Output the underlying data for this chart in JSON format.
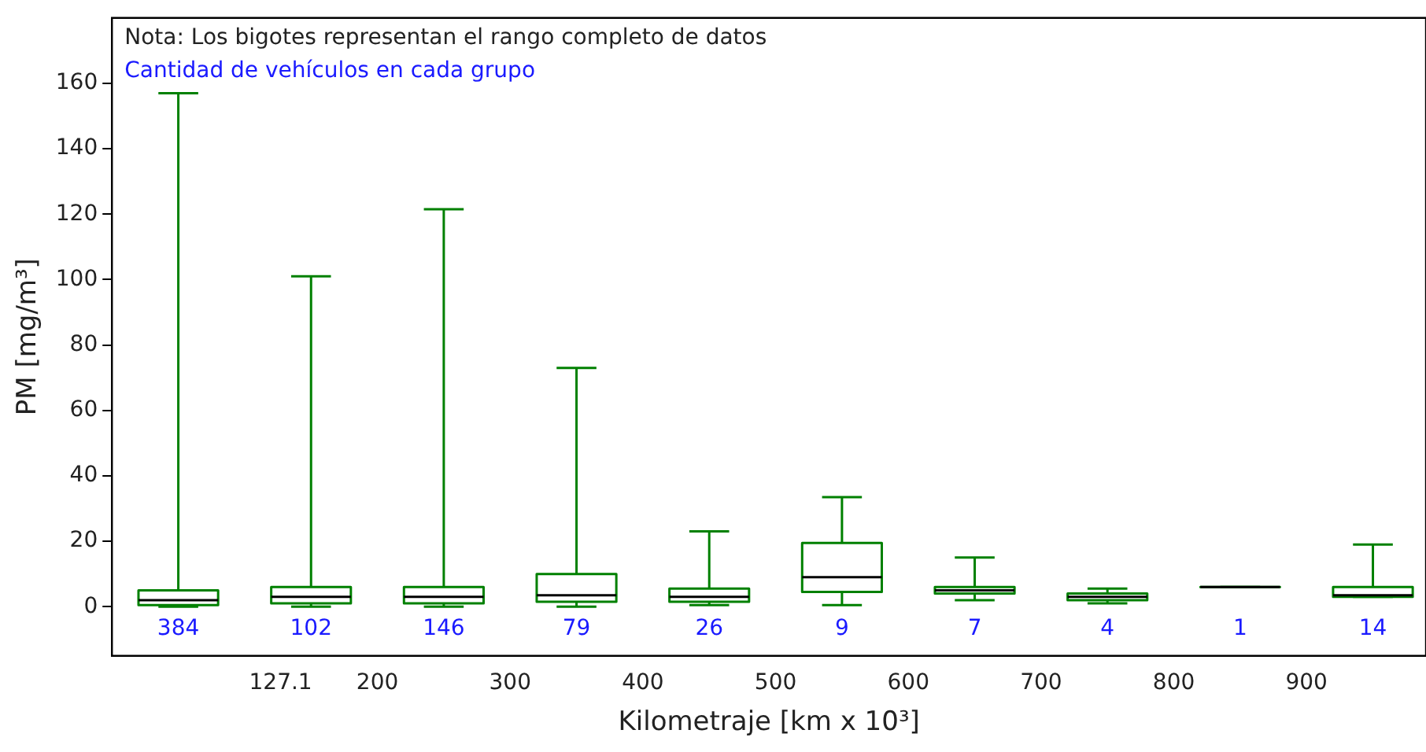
{
  "chart_data": {
    "type": "box",
    "xlabel": "Kilometraje [km x 10³]",
    "ylabel": "PM [mg/m³]",
    "x": [
      50,
      150,
      250,
      350,
      450,
      550,
      650,
      750,
      850,
      950
    ],
    "series": [
      {
        "color": "#008000",
        "boxes": [
          {
            "low": 0,
            "q1": 0.5,
            "median": 2,
            "q3": 5,
            "high": 157
          },
          {
            "low": 0,
            "q1": 1,
            "median": 3,
            "q3": 6,
            "high": 101
          },
          {
            "low": 0,
            "q1": 1,
            "median": 3,
            "q3": 6,
            "high": 121.5
          },
          {
            "low": 0,
            "q1": 1.5,
            "median": 3.5,
            "q3": 10,
            "high": 73
          },
          {
            "low": 0.5,
            "q1": 1.5,
            "median": 3,
            "q3": 5.5,
            "high": 23
          },
          {
            "low": 0.5,
            "q1": 4.5,
            "median": 9,
            "q3": 19.5,
            "high": 33.5
          },
          {
            "low": 2,
            "q1": 4,
            "median": 5,
            "q3": 6,
            "high": 15
          },
          {
            "low": 1,
            "q1": 2,
            "median": 3,
            "q3": 4,
            "high": 5.5
          },
          {
            "low": 6,
            "q1": 6,
            "median": 6,
            "q3": 6,
            "high": 6
          },
          {
            "low": 3,
            "q1": 3,
            "median": 3.5,
            "q3": 6,
            "high": 19
          }
        ]
      }
    ],
    "xlim": [
      0,
      990
    ],
    "xticks": [
      127.1,
      200,
      300,
      400,
      500,
      600,
      700,
      800,
      900
    ],
    "ylim": [
      -15,
      180
    ],
    "yticks": [
      0,
      20,
      40,
      60,
      80,
      100,
      120,
      140,
      160
    ],
    "annotations": [
      "Nota: Los bigotes representan el rango completo de datos",
      "Cantidad de vehículos en cada grupo",
      "384",
      "102",
      "146",
      "79",
      "26",
      "9",
      "7",
      "4",
      "1",
      "14"
    ]
  }
}
